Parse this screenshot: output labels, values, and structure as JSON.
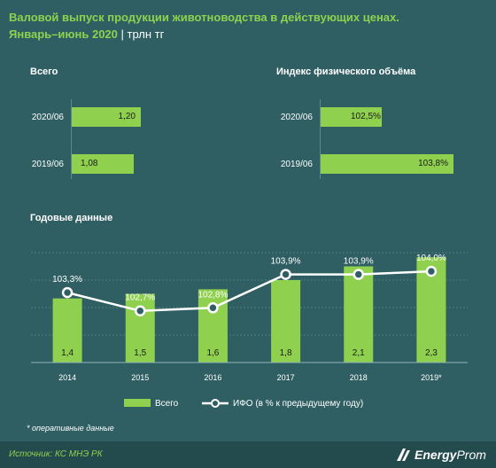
{
  "title": {
    "line1": "Валовой выпуск продукции животноводства в действующих ценах.",
    "line2": "Январь–июнь 2020",
    "unit": "| трлн тг"
  },
  "total_panel": {
    "header": "Всего",
    "rows": [
      {
        "label": "2020/06",
        "value": 1.2,
        "text": "1,20"
      },
      {
        "label": "2019/06",
        "value": 1.08,
        "text": "1,08"
      }
    ]
  },
  "index_panel": {
    "header": "Индекс физического объёма",
    "rows": [
      {
        "label": "2020/06",
        "value": 102.5,
        "text": "102,5%"
      },
      {
        "label": "2019/06",
        "value": 103.8,
        "text": "103,8%"
      }
    ]
  },
  "annual_header": "Годовые данные",
  "chart_data": {
    "type": "bar",
    "categories": [
      "2014",
      "2015",
      "2016",
      "2017",
      "2018",
      "2019*"
    ],
    "series": [
      {
        "name": "Всего",
        "kind": "bar",
        "values": [
          1.4,
          1.5,
          1.6,
          1.8,
          2.1,
          2.3
        ],
        "labels": [
          "1,4",
          "1,5",
          "1,6",
          "1,8",
          "2,1",
          "2,3"
        ]
      },
      {
        "name": "ИФО (в % к предыдущему году)",
        "kind": "line",
        "values": [
          103.3,
          102.7,
          102.8,
          103.9,
          103.9,
          104.0
        ],
        "labels": [
          "103,3%",
          "102,7%",
          "102,8%",
          "103,9%",
          "103,9%",
          "104,0%"
        ]
      }
    ],
    "legend_position": "bottom",
    "colors": {
      "bar": "#8fd14f",
      "line": "#ffffff",
      "background": "#2f5f63",
      "grid": "#527b7e"
    }
  },
  "legend": {
    "bars": "Всего",
    "line": "ИФО (в % к предыдущему году)"
  },
  "note": "* оперативные данные",
  "footer": {
    "source": "Источник: КС МНЭ РК",
    "logo_bold": "Energy",
    "logo_light": "Prom"
  }
}
